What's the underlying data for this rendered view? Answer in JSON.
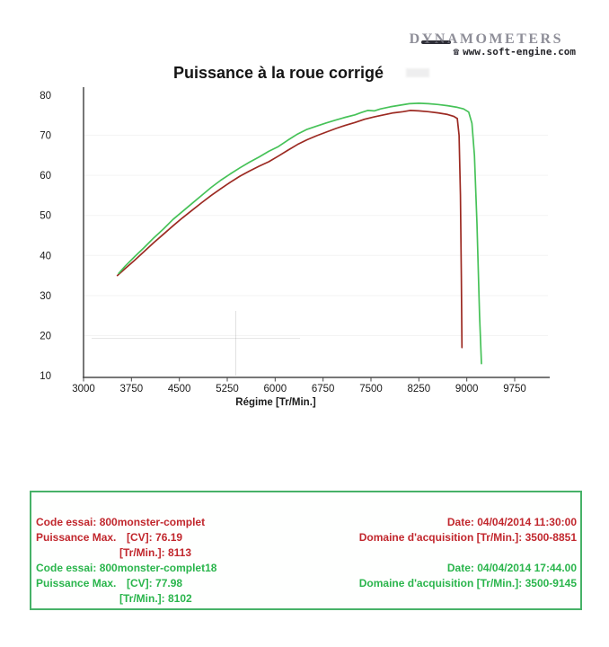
{
  "logo": {
    "brand": "DYNAMOMETERS",
    "phone_icon": "☎",
    "website": "www.soft-engine.com"
  },
  "title": "Puissance à la roue corrigé",
  "chart_data": {
    "type": "line",
    "title": "Puissance à la roue corrigé",
    "xlabel": "Régime [Tr/Min.]",
    "ylabel": "",
    "xlim": [
      3000,
      9750
    ],
    "ylim": [
      10,
      80
    ],
    "x_ticks": [
      3000,
      3750,
      4500,
      5250,
      6000,
      6750,
      7500,
      8250,
      9000,
      9750
    ],
    "y_ticks": [
      80,
      70,
      60,
      50,
      40,
      30,
      20,
      10
    ],
    "grid": "faint",
    "legend": "none",
    "series": [
      {
        "name": "800monster-complet",
        "color": "#9c2a22",
        "max_cv": 76.19,
        "max_rpm": 8113,
        "points": [
          [
            3530,
            35
          ],
          [
            3650,
            36.7
          ],
          [
            3800,
            38.8
          ],
          [
            3950,
            41
          ],
          [
            4100,
            43.2
          ],
          [
            4250,
            45.3
          ],
          [
            4400,
            47.4
          ],
          [
            4550,
            49.4
          ],
          [
            4700,
            51.3
          ],
          [
            4850,
            53.2
          ],
          [
            5000,
            55
          ],
          [
            5150,
            56.7
          ],
          [
            5300,
            58.3
          ],
          [
            5450,
            59.8
          ],
          [
            5600,
            61.1
          ],
          [
            5750,
            62.3
          ],
          [
            5900,
            63.4
          ],
          [
            6050,
            64.8
          ],
          [
            6200,
            66.3
          ],
          [
            6350,
            67.7
          ],
          [
            6500,
            68.9
          ],
          [
            6650,
            69.9
          ],
          [
            6800,
            70.8
          ],
          [
            6950,
            71.7
          ],
          [
            7100,
            72.5
          ],
          [
            7250,
            73.2
          ],
          [
            7400,
            74
          ],
          [
            7550,
            74.6
          ],
          [
            7700,
            75.1
          ],
          [
            7850,
            75.6
          ],
          [
            8000,
            75.9
          ],
          [
            8113,
            76.2
          ],
          [
            8250,
            76.1
          ],
          [
            8400,
            75.9
          ],
          [
            8550,
            75.6
          ],
          [
            8700,
            75.2
          ],
          [
            8800,
            74.7
          ],
          [
            8851,
            74.2
          ],
          [
            8880,
            70
          ],
          [
            8900,
            55
          ],
          [
            8915,
            35
          ],
          [
            8925,
            17
          ]
        ]
      },
      {
        "name": "800monster-complet18",
        "color": "#46c258",
        "max_cv": 77.98,
        "max_rpm": 8102,
        "points": [
          [
            3550,
            35.5
          ],
          [
            3650,
            37.3
          ],
          [
            3800,
            39.7
          ],
          [
            3950,
            42
          ],
          [
            4100,
            44.4
          ],
          [
            4250,
            46.6
          ],
          [
            4400,
            49
          ],
          [
            4550,
            51
          ],
          [
            4700,
            53
          ],
          [
            4850,
            55
          ],
          [
            5000,
            57
          ],
          [
            5150,
            58.8
          ],
          [
            5300,
            60.4
          ],
          [
            5450,
            61.9
          ],
          [
            5600,
            63.3
          ],
          [
            5750,
            64.6
          ],
          [
            5900,
            66
          ],
          [
            6050,
            67.2
          ],
          [
            6200,
            68.8
          ],
          [
            6350,
            70.3
          ],
          [
            6500,
            71.5
          ],
          [
            6650,
            72.3
          ],
          [
            6800,
            73.1
          ],
          [
            6950,
            73.8
          ],
          [
            7100,
            74.5
          ],
          [
            7250,
            75.1
          ],
          [
            7350,
            75.7
          ],
          [
            7450,
            76.2
          ],
          [
            7550,
            76.1
          ],
          [
            7650,
            76.6
          ],
          [
            7800,
            77.1
          ],
          [
            7950,
            77.5
          ],
          [
            8100,
            77.9
          ],
          [
            8250,
            78
          ],
          [
            8400,
            77.9
          ],
          [
            8550,
            77.7
          ],
          [
            8700,
            77.4
          ],
          [
            8850,
            77
          ],
          [
            8950,
            76.6
          ],
          [
            9030,
            75.8
          ],
          [
            9080,
            73
          ],
          [
            9120,
            65
          ],
          [
            9160,
            48
          ],
          [
            9200,
            25
          ],
          [
            9230,
            13
          ]
        ]
      }
    ]
  },
  "info_box": {
    "border_color": "#47b268",
    "runs": [
      {
        "code_label": "Code essai:",
        "code": "800monster-complet",
        "date_label": "Date:",
        "date": "04/04/2014 11:30:00",
        "pmax_label": "Puissance Max.",
        "cv_label": "[CV]:",
        "cv_value": "76.19",
        "rpm_label": "[Tr/Min.]:",
        "rpm_value": "8113",
        "domain_label": "Domaine d'acquisition [Tr/Min.]:",
        "domain_value": "3500-8851",
        "color": "#c1272d"
      },
      {
        "code_label": "Code essai:",
        "code": "800monster-complet18",
        "date_label": "Date:",
        "date": "04/04/2014 17:44.00",
        "pmax_label": "Puissance Max.",
        "cv_label": "[CV]:",
        "cv_value": "77.98",
        "rpm_label": "[Tr/Min.]:",
        "rpm_value": "8102",
        "domain_label": "Domaine d'acquisition [Tr/Min.]:",
        "domain_value": "3500-9145",
        "color": "#2ab54c"
      }
    ]
  }
}
